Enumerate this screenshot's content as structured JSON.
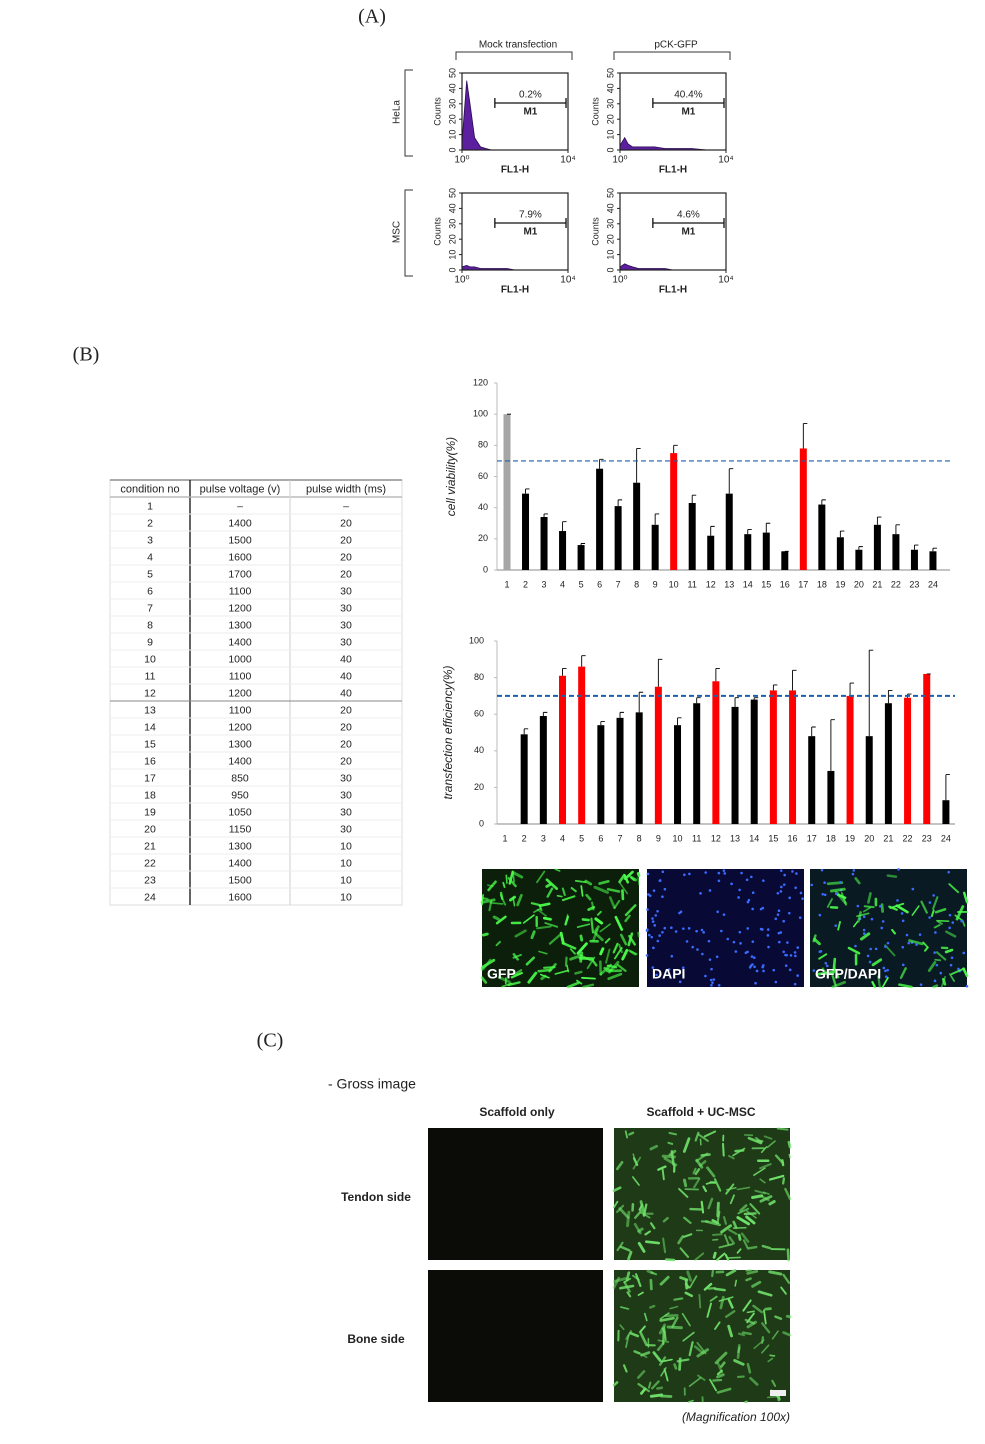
{
  "panels": {
    "a": "(A)",
    "b": "(B)",
    "c": "(C)"
  },
  "flow": {
    "columns": [
      "Mock transfection",
      "pCK-GFP"
    ],
    "rows": [
      "HeLa",
      "MSC"
    ],
    "y_label": "Counts",
    "x_label": "FL1-H",
    "gate_label": "M1",
    "color": "#5b1fa0",
    "ylim": [
      0,
      50
    ],
    "yticks": [
      0,
      10,
      20,
      30,
      40,
      50
    ],
    "xlim": [
      1,
      10000
    ],
    "xticks": [
      {
        "value": 1,
        "label": "10⁰"
      },
      {
        "value": 10000,
        "label": "10⁴"
      }
    ],
    "log_x": true,
    "x": [
      1,
      1.5,
      2,
      3,
      5,
      8,
      13,
      20,
      50,
      100,
      500,
      2000,
      10000
    ],
    "plots": [
      {
        "percent": "0.2%",
        "counts": [
          5,
          45,
          30,
          8,
          2,
          1,
          0,
          0,
          0,
          0,
          0,
          0,
          0
        ]
      },
      {
        "percent": "40.4%",
        "counts": [
          3,
          8,
          4,
          2,
          2,
          2,
          2,
          2,
          1,
          1,
          1,
          0,
          0
        ]
      },
      {
        "percent": "7.9%",
        "counts": [
          2,
          3,
          2,
          2,
          1,
          1,
          1,
          1,
          1,
          0,
          0,
          0,
          0
        ]
      },
      {
        "percent": "4.6%",
        "counts": [
          2,
          4,
          3,
          2,
          1,
          1,
          1,
          1,
          1,
          0,
          0,
          0,
          0
        ]
      }
    ]
  },
  "table": {
    "header": [
      "condition no",
      "pulse voltage (v)",
      "pulse width (ms)"
    ],
    "rows": [
      [
        "1",
        "–",
        "–"
      ],
      [
        "2",
        "1400",
        "20"
      ],
      [
        "3",
        "1500",
        "20"
      ],
      [
        "4",
        "1600",
        "20"
      ],
      [
        "5",
        "1700",
        "20"
      ],
      [
        "6",
        "1100",
        "30"
      ],
      [
        "7",
        "1200",
        "30"
      ],
      [
        "8",
        "1300",
        "30"
      ],
      [
        "9",
        "1400",
        "30"
      ],
      [
        "10",
        "1000",
        "40"
      ],
      [
        "11",
        "1100",
        "40"
      ],
      [
        "12",
        "1200",
        "40"
      ],
      [
        "13",
        "1100",
        "20"
      ],
      [
        "14",
        "1200",
        "20"
      ],
      [
        "15",
        "1300",
        "20"
      ],
      [
        "16",
        "1400",
        "20"
      ],
      [
        "17",
        "850",
        "30"
      ],
      [
        "18",
        "950",
        "30"
      ],
      [
        "19",
        "1050",
        "30"
      ],
      [
        "20",
        "1150",
        "30"
      ],
      [
        "21",
        "1300",
        "10"
      ],
      [
        "22",
        "1400",
        "10"
      ],
      [
        "23",
        "1500",
        "10"
      ],
      [
        "24",
        "1600",
        "10"
      ]
    ]
  },
  "chart_data": [
    {
      "type": "bar",
      "y_label": "cell viability(%)",
      "categories": [
        "1",
        "2",
        "3",
        "4",
        "5",
        "6",
        "7",
        "8",
        "9",
        "10",
        "11",
        "12",
        "13",
        "14",
        "15",
        "16",
        "17",
        "18",
        "19",
        "20",
        "21",
        "22",
        "23",
        "24"
      ],
      "values": [
        100,
        49,
        34,
        25,
        16,
        65,
        41,
        56,
        29,
        75,
        43,
        22,
        49,
        23,
        24,
        12,
        78,
        42,
        21,
        13,
        29,
        23,
        13,
        12
      ],
      "errors": [
        0,
        3,
        2,
        6,
        1,
        6,
        4,
        22,
        7,
        5,
        5,
        6,
        16,
        3,
        6,
        0,
        16,
        3,
        4,
        2,
        5,
        6,
        3,
        2
      ],
      "colors": [
        "#a6a6a6",
        "#000000",
        "#000000",
        "#000000",
        "#000000",
        "#000000",
        "#000000",
        "#000000",
        "#000000",
        "#ff0000",
        "#000000",
        "#000000",
        "#000000",
        "#000000",
        "#000000",
        "#000000",
        "#ff0000",
        "#000000",
        "#000000",
        "#000000",
        "#000000",
        "#000000",
        "#000000",
        "#000000"
      ],
      "ylim": [
        0,
        120
      ],
      "yticks": [
        0,
        20,
        40,
        60,
        80,
        100,
        120
      ],
      "reference_line": 70,
      "reference_color": "#1f5fa8"
    },
    {
      "type": "bar",
      "y_label": "transfection efficiency(%)",
      "categories": [
        "1",
        "2",
        "3",
        "4",
        "5",
        "6",
        "7",
        "8",
        "9",
        "10",
        "11",
        "12",
        "13",
        "14",
        "15",
        "16",
        "17",
        "18",
        "19",
        "20",
        "21",
        "22",
        "23",
        "24"
      ],
      "values": [
        null,
        49,
        59,
        81,
        86,
        54,
        58,
        61,
        75,
        54,
        66,
        78,
        64,
        68,
        73,
        73,
        48,
        29,
        70,
        48,
        66,
        69,
        82,
        13
      ],
      "errors": [
        null,
        3,
        2,
        4,
        6,
        2,
        3,
        11,
        15,
        4,
        3,
        7,
        5,
        1,
        3,
        11,
        5,
        28,
        7,
        47,
        7,
        2,
        0,
        14
      ],
      "colors": [
        "#000000",
        "#000000",
        "#000000",
        "#ff0000",
        "#ff0000",
        "#000000",
        "#000000",
        "#000000",
        "#ff0000",
        "#000000",
        "#000000",
        "#ff0000",
        "#000000",
        "#000000",
        "#ff0000",
        "#ff0000",
        "#000000",
        "#000000",
        "#ff0000",
        "#000000",
        "#000000",
        "#ff0000",
        "#ff0000",
        "#000000"
      ],
      "ylim": [
        0,
        100
      ],
      "yticks": [
        0,
        20,
        40,
        60,
        80,
        100
      ],
      "reference_line": 70,
      "reference_color": "#1f5fa8"
    }
  ],
  "images": [
    "GFP",
    "DAPI",
    "GFP/DAPI"
  ],
  "gross": {
    "title": "- Gross image",
    "columns": [
      "Scaffold only",
      "Scaffold + UC-MSC"
    ],
    "rows": [
      "Tendon side",
      "Bone side"
    ],
    "note": "(Magnification 100x)"
  }
}
